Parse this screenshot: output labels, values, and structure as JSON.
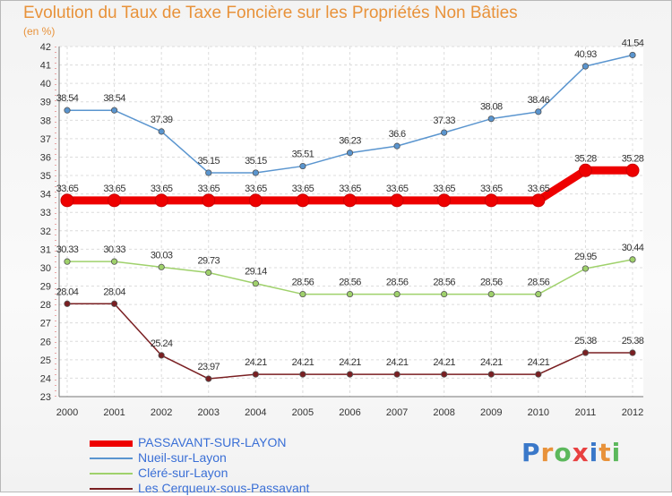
{
  "chart_data": {
    "type": "line",
    "title": "Evolution du Taux de Taxe Foncière sur les Propriétés Non Bâties",
    "subtitle": "(en %)",
    "x": [
      "2000",
      "2001",
      "2002",
      "2003",
      "2004",
      "2005",
      "2006",
      "2007",
      "2008",
      "2009",
      "2010",
      "2011",
      "2012"
    ],
    "ylim": [
      23,
      42
    ],
    "yticks": [
      23,
      24,
      25,
      26,
      27,
      28,
      29,
      30,
      31,
      32,
      33,
      34,
      35,
      36,
      37,
      38,
      39,
      40,
      41,
      42
    ],
    "grid": true,
    "legend_position": "bottom-left",
    "series": [
      {
        "name": "PASSAVANT-SUR-LAYON",
        "color": "#ee0000",
        "values": [
          33.65,
          33.65,
          33.65,
          33.65,
          33.65,
          33.65,
          33.65,
          33.65,
          33.65,
          33.65,
          33.65,
          35.28,
          35.28
        ],
        "labels": [
          "33.65",
          "33.65",
          "33.65",
          "33.65",
          "33.65",
          "33.65",
          "33.65",
          "33.65",
          "33.65",
          "33.65",
          "33.65",
          "35.28",
          "35.28"
        ]
      },
      {
        "name": "Nueil-sur-Layon",
        "color": "#5a95cf",
        "values": [
          38.54,
          38.54,
          37.39,
          35.15,
          35.15,
          35.51,
          36.23,
          36.6,
          37.33,
          38.08,
          38.46,
          40.93,
          41.54
        ],
        "labels": [
          "38.54",
          "38.54",
          "37.39",
          "35.15",
          "35.15",
          "35.51",
          "36.23",
          "36.6",
          "37.33",
          "38.08",
          "38.46",
          "40.93",
          "41.54"
        ]
      },
      {
        "name": "Cléré-sur-Layon",
        "color": "#9fd16b",
        "values": [
          30.33,
          30.33,
          30.03,
          29.73,
          29.14,
          28.56,
          28.56,
          28.56,
          28.56,
          28.56,
          28.56,
          29.95,
          30.44
        ],
        "labels": [
          "30.33",
          "30.33",
          "30.03",
          "29.73",
          "29.14",
          "28.56",
          "28.56",
          "28.56",
          "28.56",
          "28.56",
          "28.56",
          "29.95",
          "30.44"
        ]
      },
      {
        "name": "Les Cerqueux-sous-Passavant",
        "color": "#7a1f22",
        "values": [
          28.04,
          28.04,
          25.24,
          23.97,
          24.21,
          24.21,
          24.21,
          24.21,
          24.21,
          24.21,
          24.21,
          25.38,
          25.38
        ],
        "labels": [
          "28.04",
          "28.04",
          "25.24",
          "23.97",
          "24.21",
          "24.21",
          "24.21",
          "24.21",
          "24.21",
          "24.21",
          "24.21",
          "25.38",
          "25.38"
        ]
      }
    ]
  },
  "logo": {
    "text": "Proxiti",
    "colors": [
      "#3a78c9",
      "#e8923a",
      "#5cb85c",
      "#e84040"
    ]
  }
}
